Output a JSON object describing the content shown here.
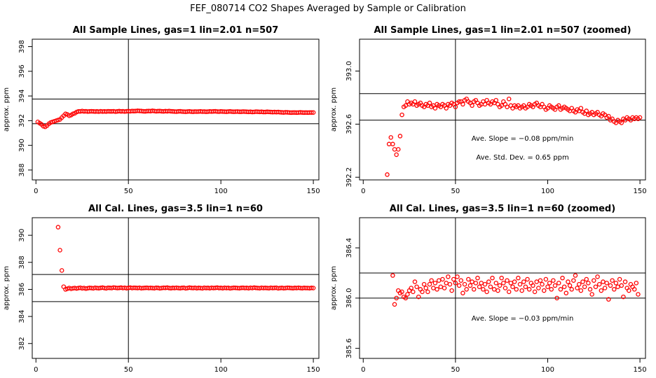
{
  "figure": {
    "title": "FEF_080714  CO2 Shapes Averaged by Sample or Calibration"
  },
  "chart_data": [
    {
      "type": "scatter",
      "title": "All Sample Lines, gas=1 lin=2.01 n=507",
      "ylabel": "approx. ppm",
      "xlim": [
        -2,
        153
      ],
      "ylim": [
        387.2,
        398.6
      ],
      "x_ticks": [
        0,
        50,
        100,
        150
      ],
      "y_ticks": [
        388,
        390,
        392,
        394,
        396,
        398
      ],
      "hlines": [
        391.75,
        393.75
      ],
      "vlines": [
        50
      ],
      "grid": false,
      "annotations": [],
      "series": [
        {
          "color": "#ff0000",
          "x_start": 1,
          "x_step": 1,
          "values": [
            391.9,
            391.8,
            391.7,
            391.55,
            391.5,
            391.6,
            391.75,
            391.85,
            391.9,
            391.95,
            392.0,
            392.05,
            392.1,
            392.25,
            392.4,
            392.55,
            392.5,
            392.4,
            392.45,
            392.55,
            392.6,
            392.7,
            392.75,
            392.75,
            392.78,
            392.75,
            392.76,
            392.74,
            392.75,
            392.76,
            392.75,
            392.74,
            392.75,
            392.73,
            392.76,
            392.74,
            392.75,
            392.74,
            392.76,
            392.75,
            392.75,
            392.76,
            392.73,
            392.75,
            392.77,
            392.75,
            392.76,
            392.74,
            392.76,
            392.77,
            392.76,
            392.78,
            392.77,
            392.78,
            392.8,
            392.79,
            392.78,
            392.76,
            392.75,
            392.77,
            392.78,
            392.77,
            392.8,
            392.78,
            392.76,
            392.77,
            392.78,
            392.76,
            392.75,
            392.77,
            392.76,
            392.78,
            392.76,
            392.75,
            392.74,
            392.73,
            392.75,
            392.76,
            392.74,
            392.73,
            392.72,
            392.74,
            392.75,
            392.73,
            392.72,
            392.74,
            392.73,
            392.74,
            392.75,
            392.73,
            392.74,
            392.72,
            392.73,
            392.75,
            392.74,
            392.75,
            392.76,
            392.74,
            392.73,
            392.75,
            392.74,
            392.73,
            392.72,
            392.74,
            392.75,
            392.73,
            392.72,
            392.73,
            392.74,
            392.72,
            392.72,
            392.74,
            392.73,
            392.72,
            392.71,
            392.72,
            392.7,
            392.71,
            392.73,
            392.72,
            392.71,
            392.72,
            392.7,
            392.7,
            392.72,
            392.71,
            392.7,
            392.69,
            392.7,
            392.69,
            392.7,
            392.68,
            392.67,
            392.66,
            392.68,
            392.67,
            392.66,
            392.65,
            392.66,
            392.66,
            392.65,
            392.66,
            392.67,
            392.66,
            392.65,
            392.66,
            392.65,
            392.66,
            392.66,
            392.66
          ]
        }
      ]
    },
    {
      "type": "scatter",
      "title": "All Sample Lines, gas=1 lin=2.01 n=507 (zoomed)",
      "ylabel": "approx. ppm",
      "xlim": [
        -2,
        153
      ],
      "ylim": [
        392.18,
        393.24
      ],
      "x_ticks": [
        0,
        50,
        100,
        150
      ],
      "y_ticks": [
        392.2,
        392.6,
        393.0
      ],
      "hlines": [
        392.63,
        392.83
      ],
      "vlines": [
        50
      ],
      "grid": false,
      "annotations": [
        "Ave. Slope = −0.08  ppm/min",
        "Ave. Std. Dev. = 0.65  ppm"
      ],
      "series": [
        {
          "color": "#ff0000",
          "x_start": 13,
          "x_step": 1,
          "values": [
            392.22,
            392.45,
            392.5,
            392.45,
            392.41,
            392.37,
            392.41,
            392.51,
            392.67,
            392.73,
            392.74,
            392.77,
            392.75,
            392.76,
            392.75,
            392.77,
            392.74,
            392.75,
            392.76,
            392.74,
            392.73,
            392.75,
            392.74,
            392.76,
            392.73,
            392.74,
            392.72,
            392.75,
            392.74,
            392.73,
            392.75,
            392.74,
            392.72,
            392.75,
            392.74,
            392.76,
            392.75,
            392.73,
            392.76,
            392.77,
            392.77,
            392.75,
            392.78,
            392.79,
            392.77,
            392.76,
            392.74,
            392.77,
            392.78,
            392.76,
            392.74,
            392.75,
            392.77,
            392.75,
            392.78,
            392.76,
            392.75,
            392.77,
            392.76,
            392.78,
            392.75,
            392.73,
            392.74,
            392.77,
            392.75,
            392.73,
            392.79,
            392.74,
            392.72,
            392.74,
            392.73,
            392.74,
            392.72,
            392.73,
            392.74,
            392.72,
            392.73,
            392.75,
            392.74,
            392.73,
            392.75,
            392.76,
            392.74,
            392.73,
            392.75,
            392.73,
            392.71,
            392.72,
            392.74,
            392.73,
            392.72,
            392.71,
            392.73,
            392.74,
            392.71,
            392.72,
            392.73,
            392.72,
            392.71,
            392.7,
            392.72,
            392.7,
            392.69,
            392.71,
            392.7,
            392.72,
            392.69,
            392.68,
            392.7,
            392.67,
            392.68,
            392.69,
            392.67,
            392.68,
            392.69,
            392.67,
            392.66,
            392.68,
            392.67,
            392.65,
            392.66,
            392.63,
            392.64,
            392.62,
            392.61,
            392.63,
            392.62,
            392.61,
            392.64,
            392.63,
            392.65,
            392.64,
            392.63,
            392.65,
            392.64,
            392.65,
            392.64,
            392.65
          ]
        }
      ]
    },
    {
      "type": "scatter",
      "title": "All Cal. Lines, gas=3.5 lin=1 n=60",
      "ylabel": "approx. ppm",
      "xlim": [
        -2,
        153
      ],
      "ylim": [
        380.9,
        391.3
      ],
      "x_ticks": [
        0,
        50,
        100,
        150
      ],
      "y_ticks": [
        382,
        384,
        386,
        388,
        390
      ],
      "hlines": [
        385.1,
        387.1
      ],
      "vlines": [
        50
      ],
      "grid": false,
      "annotations": [],
      "series": [
        {
          "color": "#ff0000",
          "x_start": 12,
          "x_step": 1,
          "values": [
            390.6,
            388.9,
            387.4,
            386.2,
            386.0,
            386.05,
            386.1,
            386.05,
            386.08,
            386.1,
            386.07,
            386.1,
            386.12,
            386.08,
            386.1,
            386.06,
            386.09,
            386.11,
            386.1,
            386.08,
            386.12,
            386.1,
            386.09,
            386.11,
            386.13,
            386.1,
            386.08,
            386.12,
            386.11,
            386.1,
            386.14,
            386.12,
            386.1,
            386.11,
            386.13,
            386.1,
            386.12,
            386.09,
            386.11,
            386.13,
            386.1,
            386.12,
            386.11,
            386.1,
            386.12,
            386.09,
            386.1,
            386.11,
            386.12,
            386.1,
            386.11,
            386.1,
            386.09,
            386.12,
            386.11,
            386.08,
            386.1,
            386.12,
            386.11,
            386.13,
            386.1,
            386.09,
            386.11,
            386.1,
            386.12,
            386.1,
            386.09,
            386.11,
            386.12,
            386.08,
            386.1,
            386.13,
            386.11,
            386.1,
            386.12,
            386.09,
            386.11,
            386.1,
            386.08,
            386.12,
            386.1,
            386.11,
            386.09,
            386.12,
            386.1,
            386.11,
            386.13,
            386.1,
            386.11,
            386.09,
            386.12,
            386.1,
            386.11,
            386.08,
            386.1,
            386.12,
            386.11,
            386.1,
            386.09,
            386.11,
            386.12,
            386.1,
            386.11,
            386.09,
            386.12,
            386.1,
            386.13,
            386.11,
            386.1,
            386.09,
            386.12,
            386.1,
            386.11,
            386.1,
            386.09,
            386.12,
            386.1,
            386.11,
            386.12,
            386.08,
            386.1,
            386.11,
            386.09,
            386.1,
            386.12,
            386.11,
            386.1,
            386.09,
            386.11,
            386.1,
            386.12,
            386.1,
            386.09,
            386.11,
            386.1,
            386.1,
            386.09,
            386.11,
            386.1
          ]
        }
      ]
    },
    {
      "type": "scatter",
      "title": "All Cal. Lines, gas=3.5 lin=1 n=60 (zoomed)",
      "ylabel": "approx. ppm",
      "xlim": [
        -2,
        153
      ],
      "ylim": [
        385.52,
        386.64
      ],
      "x_ticks": [
        0,
        50,
        100,
        150
      ],
      "y_ticks": [
        385.6,
        386.0,
        386.4
      ],
      "hlines": [
        386.0,
        386.2
      ],
      "vlines": [
        50
      ],
      "grid": false,
      "annotations": [
        "Ave. Slope = −0.03  ppm/min"
      ],
      "series": [
        {
          "color": "#ff0000",
          "x_start": 16,
          "x_step": 1,
          "values": [
            386.18,
            385.95,
            386.0,
            386.06,
            386.04,
            386.05,
            386.01,
            386.0,
            386.03,
            386.06,
            386.08,
            386.05,
            386.13,
            386.09,
            386.01,
            386.07,
            386.05,
            386.11,
            386.08,
            386.05,
            386.11,
            386.14,
            386.08,
            386.12,
            386.07,
            386.14,
            386.09,
            386.15,
            386.08,
            386.12,
            386.17,
            386.11,
            386.06,
            386.15,
            386.12,
            386.17,
            386.1,
            386.14,
            386.04,
            386.11,
            386.07,
            386.15,
            386.1,
            386.13,
            386.07,
            386.12,
            386.16,
            386.09,
            386.12,
            386.07,
            386.11,
            386.05,
            386.13,
            386.09,
            386.16,
            386.07,
            386.12,
            386.06,
            386.1,
            386.16,
            386.12,
            386.08,
            386.14,
            386.05,
            386.12,
            386.09,
            386.13,
            386.07,
            386.16,
            386.11,
            386.06,
            386.13,
            386.09,
            386.15,
            386.07,
            386.12,
            386.1,
            386.05,
            386.13,
            386.08,
            386.14,
            386.11,
            386.06,
            386.15,
            386.09,
            386.12,
            386.07,
            386.14,
            386.1,
            386.0,
            386.12,
            386.07,
            386.16,
            386.09,
            386.04,
            386.13,
            386.1,
            386.07,
            386.14,
            386.18,
            386.08,
            386.11,
            386.06,
            386.13,
            386.09,
            386.15,
            386.12,
            386.07,
            386.03,
            386.14,
            386.09,
            386.17,
            386.11,
            386.06,
            386.13,
            386.08,
            386.12,
            385.99,
            386.1,
            386.14,
            386.07,
            386.12,
            386.09,
            386.15,
            386.1,
            386.01,
            386.13,
            386.08,
            386.06,
            386.11,
            386.09,
            386.07,
            386.12,
            386.03
          ]
        }
      ]
    }
  ]
}
